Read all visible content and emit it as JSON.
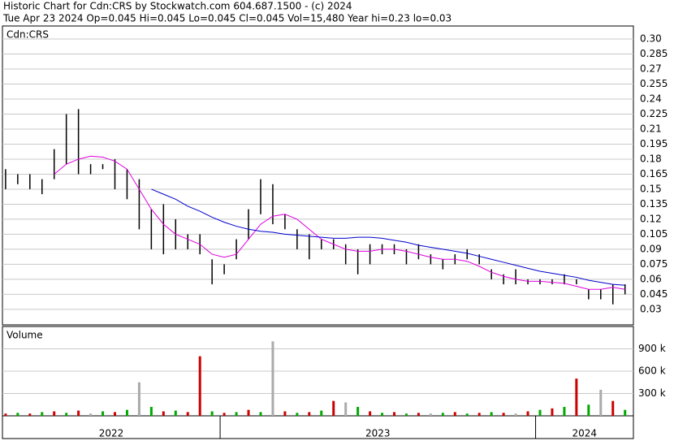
{
  "chart_data": {
    "type": "range-bar",
    "title": "Historic Chart for Cdn:CRS by Stockwatch.com 604.687.1500 - (c) 2024",
    "subtitle": "Tue Apr 23 2024  Op=0.045  Hi=0.045  Lo=0.045  Cl=0.045  Vol=15,480  Year hi=0.23  lo=0.03",
    "symbol": "Cdn:CRS",
    "x": [
      2022.32,
      2022.3585,
      2022.397,
      2022.4355,
      2022.474,
      2022.5125,
      2022.551,
      2022.5895,
      2022.628,
      2022.6665,
      2022.705,
      2022.7435,
      2022.782,
      2022.8205,
      2022.859,
      2022.8975,
      2022.936,
      2022.9745,
      2023.013,
      2023.0515,
      2023.09,
      2023.1285,
      2023.167,
      2023.2055,
      2023.244,
      2023.2825,
      2023.321,
      2023.3595,
      2023.398,
      2023.4365,
      2023.475,
      2023.5135,
      2023.552,
      2023.5905,
      2023.629,
      2023.6675,
      2023.706,
      2023.7445,
      2023.783,
      2023.8215,
      2023.86,
      2023.8985,
      2023.937,
      2023.9755,
      2024.014,
      2024.0525,
      2024.091,
      2024.1295,
      2024.168,
      2024.2065,
      2024.245,
      2024.2835
    ],
    "high": [
      0.17,
      0.165,
      0.165,
      0.16,
      0.19,
      0.225,
      0.23,
      0.175,
      0.175,
      0.18,
      0.17,
      0.16,
      0.13,
      0.135,
      0.12,
      0.105,
      0.105,
      0.08,
      0.075,
      0.1,
      0.13,
      0.16,
      0.155,
      0.125,
      0.11,
      0.105,
      0.1,
      0.1,
      0.095,
      0.09,
      0.095,
      0.095,
      0.095,
      0.09,
      0.095,
      0.085,
      0.08,
      0.085,
      0.09,
      0.085,
      0.07,
      0.065,
      0.07,
      0.06,
      0.06,
      0.06,
      0.065,
      0.06,
      0.05,
      0.05,
      0.055,
      0.055
    ],
    "low": [
      0.15,
      0.155,
      0.15,
      0.145,
      0.16,
      0.175,
      0.165,
      0.165,
      0.17,
      0.15,
      0.14,
      0.11,
      0.09,
      0.085,
      0.09,
      0.09,
      0.085,
      0.055,
      0.065,
      0.08,
      0.1,
      0.125,
      0.115,
      0.11,
      0.09,
      0.08,
      0.09,
      0.09,
      0.075,
      0.065,
      0.075,
      0.085,
      0.085,
      0.075,
      0.08,
      0.075,
      0.07,
      0.075,
      0.08,
      0.075,
      0.06,
      0.055,
      0.055,
      0.055,
      0.055,
      0.055,
      0.055,
      0.055,
      0.04,
      0.04,
      0.035,
      0.045
    ],
    "bar_color": "#000000",
    "moving_averages": [
      {
        "color": "#dd00dd",
        "values": [
          null,
          null,
          null,
          null,
          0.165,
          0.175,
          0.18,
          0.183,
          0.182,
          0.178,
          0.17,
          0.15,
          0.13,
          0.115,
          0.105,
          0.1,
          0.095,
          0.085,
          0.082,
          0.085,
          0.1,
          0.115,
          0.123,
          0.125,
          0.12,
          0.11,
          0.1,
          0.095,
          0.09,
          0.088,
          0.088,
          0.09,
          0.09,
          0.088,
          0.085,
          0.082,
          0.08,
          0.08,
          0.078,
          0.073,
          0.067,
          0.063,
          0.06,
          0.058,
          0.058,
          0.057,
          0.056,
          0.053,
          0.05,
          0.05,
          0.052,
          0.05
        ]
      },
      {
        "color": "#0000cc",
        "values": [
          null,
          null,
          null,
          null,
          null,
          null,
          null,
          null,
          null,
          null,
          null,
          null,
          0.15,
          0.145,
          0.14,
          0.133,
          0.128,
          0.122,
          0.117,
          0.113,
          0.11,
          0.108,
          0.107,
          0.105,
          0.104,
          0.103,
          0.102,
          0.101,
          0.101,
          0.102,
          0.102,
          0.101,
          0.099,
          0.097,
          0.094,
          0.092,
          0.09,
          0.088,
          0.086,
          0.083,
          0.08,
          0.077,
          0.074,
          0.071,
          0.068,
          0.066,
          0.064,
          0.062,
          0.059,
          0.057,
          0.055,
          0.054
        ]
      }
    ],
    "xlim": [
      2022.31,
      2024.31
    ],
    "xticks": [
      {
        "value": 2022.655,
        "label": "2022"
      },
      {
        "value": 2023.5,
        "label": "2023"
      },
      {
        "value": 2024.155,
        "label": "2024"
      }
    ],
    "year_dividers": [
      2023,
      2024
    ],
    "ylim": [
      0.0145,
      0.313
    ],
    "yticks": [
      {
        "value": 0.3,
        "label": "0.30"
      },
      0.285,
      0.27,
      0.255,
      0.24,
      0.225,
      0.21,
      0.195,
      0.18,
      0.165,
      0.15,
      0.135,
      0.12,
      0.105,
      0.09,
      0.075,
      0.06,
      0.045,
      0.03
    ],
    "grid": true,
    "volume": {
      "label": "Volume",
      "values": [
        30000,
        40000,
        30000,
        50000,
        60000,
        40000,
        70000,
        30000,
        60000,
        50000,
        80000,
        450000,
        120000,
        60000,
        70000,
        50000,
        800000,
        60000,
        40000,
        50000,
        80000,
        50000,
        1000000,
        60000,
        40000,
        50000,
        70000,
        200000,
        180000,
        120000,
        60000,
        40000,
        50000,
        30000,
        40000,
        30000,
        40000,
        50000,
        30000,
        40000,
        50000,
        40000,
        30000,
        60000,
        80000,
        100000,
        120000,
        500000,
        150000,
        350000,
        200000,
        80000
      ],
      "colors": [
        "#cc0000",
        "#00aa00",
        "#cc0000",
        "#00aa00",
        "#cc0000",
        "#00aa00",
        "#cc0000",
        "#aaaaaa",
        "#00aa00",
        "#cc0000",
        "#00aa00",
        "#aaaaaa",
        "#00aa00",
        "#cc0000",
        "#00aa00",
        "#cc0000",
        "#cc0000",
        "#00aa00",
        "#cc0000",
        "#00aa00",
        "#cc0000",
        "#00aa00",
        "#aaaaaa",
        "#cc0000",
        "#00aa00",
        "#cc0000",
        "#00aa00",
        "#cc0000",
        "#aaaaaa",
        "#00aa00",
        "#cc0000",
        "#00aa00",
        "#cc0000",
        "#00aa00",
        "#cc0000",
        "#aaaaaa",
        "#00aa00",
        "#cc0000",
        "#00aa00",
        "#cc0000",
        "#00aa00",
        "#cc0000",
        "#aaaaaa",
        "#cc0000",
        "#00aa00",
        "#cc0000",
        "#00aa00",
        "#cc0000",
        "#00aa00",
        "#aaaaaa",
        "#cc0000",
        "#00aa00"
      ],
      "ylim": [
        0,
        1200000
      ],
      "yticks": [
        {
          "value": 900000,
          "label": "900 k"
        },
        {
          "value": 600000,
          "label": "600 k"
        },
        {
          "value": 300000,
          "label": "300 k"
        }
      ]
    }
  }
}
